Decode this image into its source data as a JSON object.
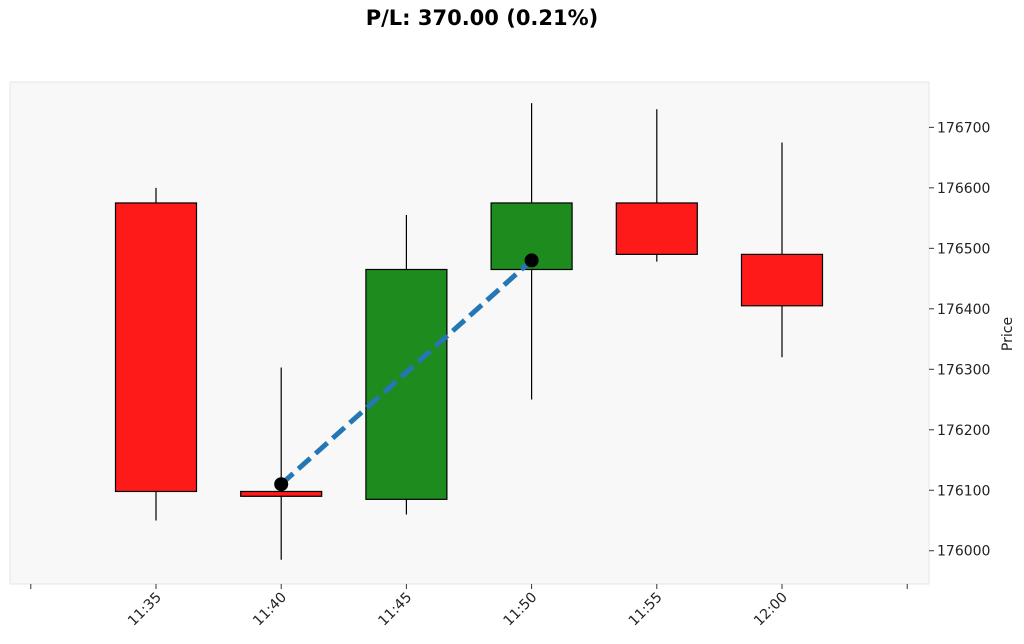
{
  "chart_data": {
    "type": "candlestick",
    "title": "P/L: 370.00 (0.21%)",
    "xlabel": "",
    "ylabel": "Price",
    "categories": [
      "11:35",
      "11:40",
      "11:45",
      "11:50",
      "11:55",
      "12:00"
    ],
    "x_extra_ticks": [
      "",
      ""
    ],
    "candles": [
      {
        "time": "11:35",
        "open": 176575,
        "high": 176600,
        "low": 176050,
        "close": 176098
      },
      {
        "time": "11:40",
        "open": 176098,
        "high": 176303,
        "low": 175985,
        "close": 176090
      },
      {
        "time": "11:45",
        "open": 176085,
        "high": 176555,
        "low": 176060,
        "close": 176465
      },
      {
        "time": "11:50",
        "open": 176465,
        "high": 176740,
        "low": 176250,
        "close": 176575
      },
      {
        "time": "11:55",
        "open": 176575,
        "high": 176730,
        "low": 176478,
        "close": 176490
      },
      {
        "time": "12:00",
        "open": 176490,
        "high": 176675,
        "low": 176320,
        "close": 176405
      }
    ],
    "trade_line": {
      "points": [
        {
          "time": "11:40",
          "price": 176110
        },
        {
          "time": "11:50",
          "price": 176480
        }
      ],
      "style": "dashed"
    },
    "y_ticks": [
      176000,
      176100,
      176200,
      176300,
      176400,
      176500,
      176600,
      176700
    ],
    "ylim": [
      175945,
      176775
    ],
    "y_axis_side": "right",
    "grid": false,
    "colors": {
      "up": "#1e8b1e",
      "down": "#ff1a1a",
      "trade_line": "#2477b4",
      "marker": "#000000",
      "plot_background": "#f8f8f8",
      "plot_border": "#e6e6e6",
      "wick": "#000000"
    }
  }
}
